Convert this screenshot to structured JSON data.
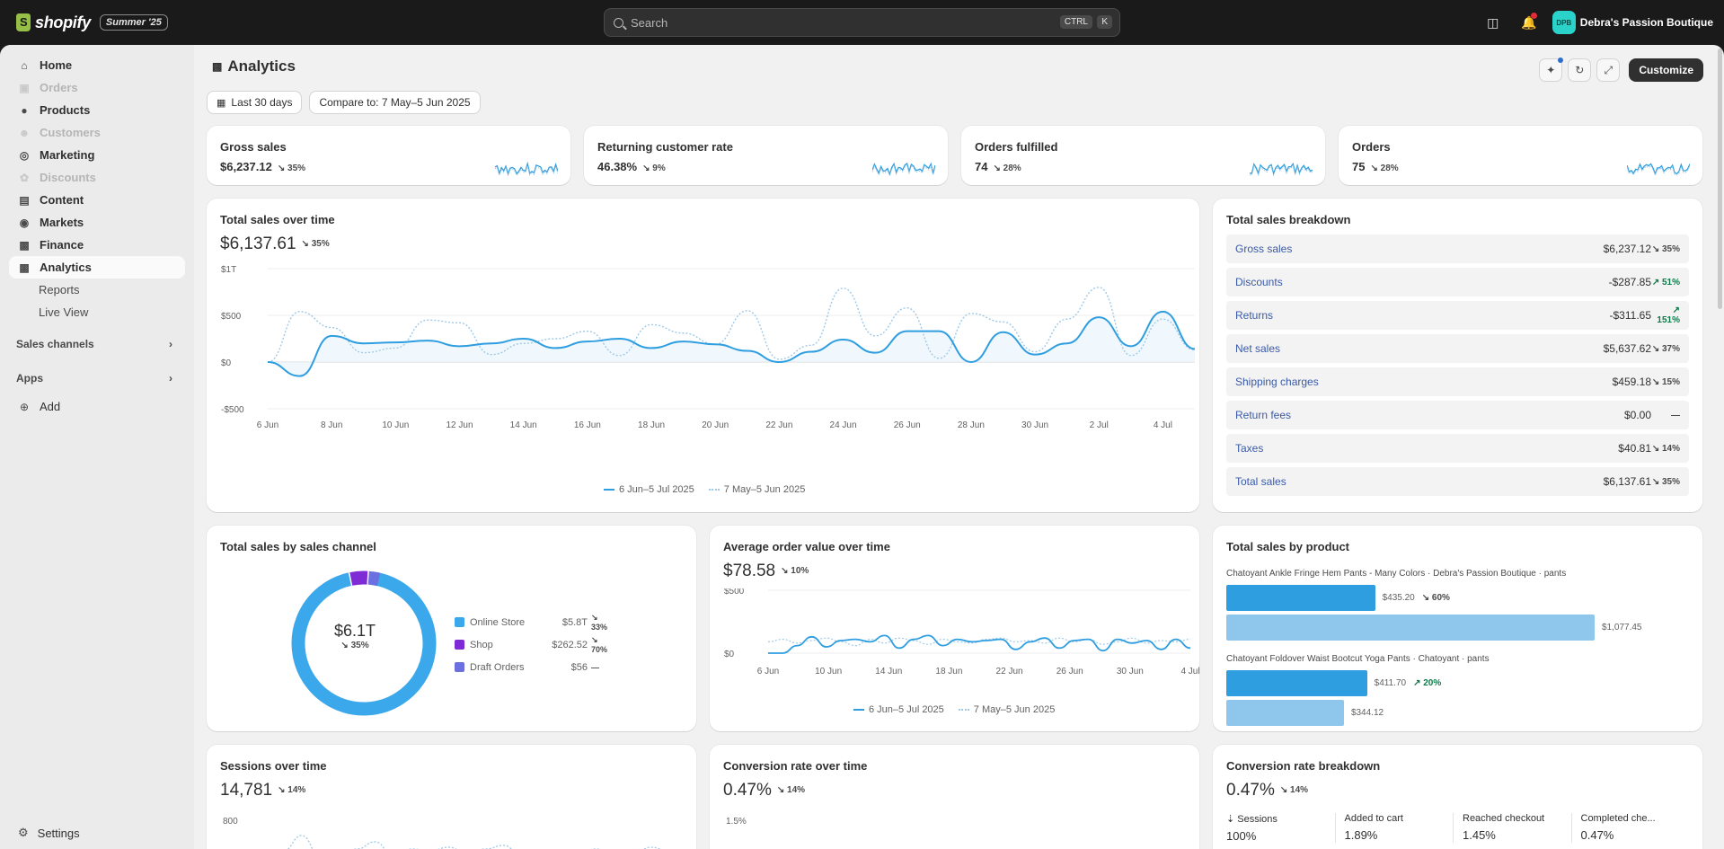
{
  "topbar": {
    "brand": "shopify",
    "edition": "Summer '25",
    "search_placeholder": "Search",
    "kbd_ctrl": "CTRL",
    "kbd_k": "K",
    "avatar_initials": "DPB",
    "store_name": "Debra's Passion Boutique"
  },
  "sidebar": {
    "items": [
      {
        "label": "Home",
        "icon": "home-icon",
        "disabled": false
      },
      {
        "label": "Orders",
        "icon": "orders-icon",
        "disabled": true
      },
      {
        "label": "Products",
        "icon": "tag-icon",
        "disabled": false
      },
      {
        "label": "Customers",
        "icon": "person-icon",
        "disabled": true
      },
      {
        "label": "Marketing",
        "icon": "target-icon",
        "disabled": false
      },
      {
        "label": "Discounts",
        "icon": "discount-icon",
        "disabled": true
      },
      {
        "label": "Content",
        "icon": "content-icon",
        "disabled": false
      },
      {
        "label": "Markets",
        "icon": "globe-icon",
        "disabled": false
      },
      {
        "label": "Finance",
        "icon": "bank-icon",
        "disabled": false
      },
      {
        "label": "Analytics",
        "icon": "chart-icon",
        "disabled": false
      }
    ],
    "sub_items": [
      "Reports",
      "Live View"
    ],
    "sales_channels": "Sales channels",
    "apps": "Apps",
    "add": "Add",
    "settings": "Settings"
  },
  "header": {
    "title": "Analytics",
    "customize": "Customize",
    "date_range": "Last 30 days",
    "compare": "Compare to: 7 May–5 Jun 2025"
  },
  "kpis": [
    {
      "title": "Gross sales",
      "value": "$6,237.12",
      "delta": "35%"
    },
    {
      "title": "Returning customer rate",
      "value": "46.38%",
      "delta": "9%"
    },
    {
      "title": "Orders fulfilled",
      "value": "74",
      "delta": "28%"
    },
    {
      "title": "Orders",
      "value": "75",
      "delta": "28%"
    }
  ],
  "total_sales": {
    "title": "Total sales over time",
    "value": "$6,137.61",
    "delta": "35%",
    "legend_current": "6 Jun–5 Jul 2025",
    "legend_previous": "7 May–5 Jun 2025"
  },
  "breakdown": {
    "title": "Total sales breakdown",
    "rows": [
      {
        "label": "Gross sales",
        "value": "$6,237.12",
        "delta": "35%",
        "up": false
      },
      {
        "label": "Discounts",
        "value": "-$287.85",
        "delta": "51%",
        "up": true
      },
      {
        "label": "Returns",
        "value": "-$311.65",
        "delta": "151%",
        "up": true
      },
      {
        "label": "Net sales",
        "value": "$5,637.62",
        "delta": "37%",
        "up": false
      },
      {
        "label": "Shipping charges",
        "value": "$459.18",
        "delta": "15%",
        "up": false
      },
      {
        "label": "Return fees",
        "value": "$0.00",
        "delta": "—",
        "up": false
      },
      {
        "label": "Taxes",
        "value": "$40.81",
        "delta": "14%",
        "up": false
      },
      {
        "label": "Total sales",
        "value": "$6,137.61",
        "delta": "35%",
        "up": false
      }
    ]
  },
  "channel": {
    "title": "Total sales by sales channel",
    "center_value": "$6.1T",
    "center_delta": "35%",
    "rows": [
      {
        "name": "Online Store",
        "value": "$5.8T",
        "delta": "33%",
        "color": "#3aa8ea"
      },
      {
        "name": "Shop",
        "value": "$262.52",
        "delta": "70%",
        "color": "#7e2bd6"
      },
      {
        "name": "Draft Orders",
        "value": "$56",
        "delta": "—",
        "color": "#6b6fe0"
      }
    ]
  },
  "aov": {
    "title": "Average order value over time",
    "value": "$78.58",
    "delta": "10%",
    "legend_current": "6 Jun–5 Jul 2025",
    "legend_previous": "7 May–5 Jun 2025"
  },
  "by_product": {
    "title": "Total sales by product",
    "products": [
      {
        "name": "Chatoyant Ankle Fringe Hem Pants - Many Colors · Debra's Passion Boutique · pants",
        "current_label": "$435.20",
        "delta": "60%",
        "up": false,
        "previous_label": "$1,077.45",
        "current": 435.2,
        "previous": 1077.45
      },
      {
        "name": "Chatoyant Foldover Waist Bootcut Yoga Pants · Chatoyant · pants",
        "current_label": "$411.70",
        "delta": "20%",
        "up": true,
        "previous_label": "$344.12",
        "current": 411.7,
        "previous": 344.12
      }
    ]
  },
  "sessions": {
    "title": "Sessions over time",
    "value": "14,781",
    "delta": "14%"
  },
  "conversion": {
    "title": "Conversion rate over time",
    "value": "0.47%",
    "delta": "14%"
  },
  "conv_breakdown": {
    "title": "Conversion rate breakdown",
    "value": "0.47%",
    "delta": "14%",
    "steps": [
      {
        "label": "Sessions",
        "value": "100%"
      },
      {
        "label": "Added to cart",
        "value": "1.89%"
      },
      {
        "label": "Reached checkout",
        "value": "1.45%"
      },
      {
        "label": "Completed che...",
        "value": "0.47%"
      }
    ]
  },
  "chart_data": [
    {
      "type": "line",
      "title": "Total sales over time",
      "x": [
        "6 Jun",
        "7 Jun",
        "8 Jun",
        "9 Jun",
        "10 Jun",
        "11 Jun",
        "12 Jun",
        "13 Jun",
        "14 Jun",
        "15 Jun",
        "16 Jun",
        "17 Jun",
        "18 Jun",
        "19 Jun",
        "20 Jun",
        "21 Jun",
        "22 Jun",
        "23 Jun",
        "24 Jun",
        "25 Jun",
        "26 Jun",
        "27 Jun",
        "28 Jun",
        "29 Jun",
        "30 Jun",
        "1 Jul",
        "2 Jul",
        "3 Jul",
        "4 Jul",
        "5 Jul"
      ],
      "x_ticks": [
        "6 Jun",
        "8 Jun",
        "10 Jun",
        "12 Jun",
        "14 Jun",
        "16 Jun",
        "18 Jun",
        "20 Jun",
        "22 Jun",
        "24 Jun",
        "26 Jun",
        "28 Jun",
        "30 Jun",
        "2 Jul",
        "4 Jul"
      ],
      "y_ticks": [
        "$1T",
        "$500",
        "$0",
        "-$500"
      ],
      "ylim": [
        -500,
        1000
      ],
      "series": [
        {
          "name": "6 Jun–5 Jul 2025",
          "color": "#2f9ee0",
          "style": "solid",
          "values": [
            0,
            -150,
            280,
            200,
            210,
            230,
            170,
            200,
            250,
            150,
            220,
            250,
            150,
            220,
            190,
            120,
            0,
            110,
            240,
            100,
            330,
            330,
            0,
            320,
            80,
            200,
            480,
            170,
            540,
            140
          ]
        },
        {
          "name": "7 May–5 Jun 2025",
          "color": "#9fc9e6",
          "style": "dotted",
          "values": [
            0,
            540,
            370,
            100,
            150,
            450,
            420,
            80,
            200,
            250,
            330,
            70,
            400,
            310,
            190,
            550,
            30,
            180,
            790,
            280,
            580,
            40,
            520,
            430,
            110,
            460,
            800,
            70,
            460,
            130
          ]
        }
      ]
    },
    {
      "type": "pie",
      "title": "Total sales by sales channel",
      "categories": [
        "Online Store",
        "Shop",
        "Draft Orders"
      ],
      "values": [
        5818.8,
        262.52,
        56
      ]
    },
    {
      "type": "line",
      "title": "Average order value over time",
      "x_ticks": [
        "6 Jun",
        "10 Jun",
        "14 Jun",
        "18 Jun",
        "22 Jun",
        "26 Jun",
        "30 Jun",
        "4 Jul"
      ],
      "y_ticks": [
        "$500",
        "$0"
      ],
      "ylim": [
        0,
        500
      ],
      "series": [
        {
          "name": "6 Jun–5 Jul 2025",
          "color": "#2f9ee0",
          "style": "solid",
          "values": [
            0,
            0,
            60,
            130,
            50,
            100,
            110,
            90,
            140,
            40,
            110,
            140,
            60,
            110,
            90,
            100,
            110,
            30,
            90,
            120,
            40,
            100,
            110,
            20,
            110,
            80,
            100,
            30,
            110,
            40
          ]
        },
        {
          "name": "7 May–5 Jun 2025",
          "color": "#9fc9e6",
          "style": "dotted",
          "values": [
            90,
            110,
            80,
            100,
            120,
            90,
            60,
            110,
            80,
            120,
            100,
            70,
            110,
            90,
            80,
            110,
            120,
            90,
            100,
            80,
            120,
            90,
            110,
            70,
            90,
            120,
            80,
            100,
            90,
            110
          ]
        }
      ]
    },
    {
      "type": "bar",
      "title": "Total sales by product",
      "categories": [
        "Chatoyant Ankle Fringe Hem Pants - Many Colors",
        "Chatoyant Foldover Waist Bootcut Yoga Pants"
      ],
      "series": [
        {
          "name": "6 Jun–5 Jul 2025",
          "values": [
            435.2,
            411.7
          ]
        },
        {
          "name": "7 May–5 Jun 2025",
          "values": [
            1077.45,
            344.12
          ]
        }
      ]
    }
  ]
}
